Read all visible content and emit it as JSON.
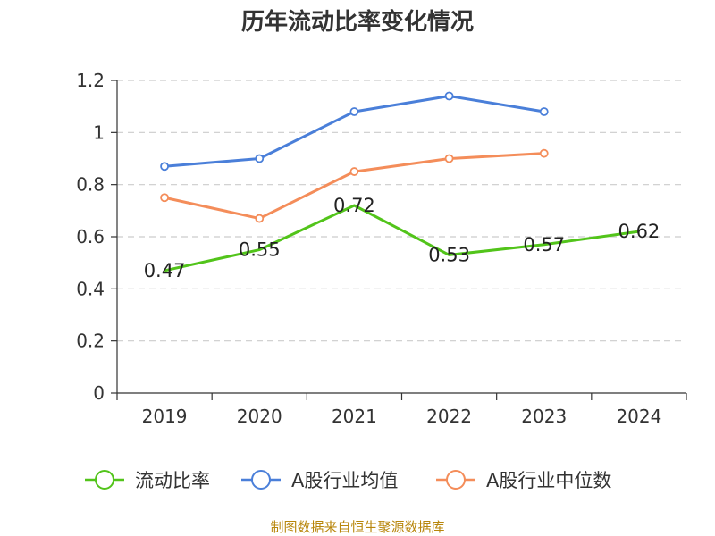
{
  "source": "制图数据来自恒生聚源数据库",
  "chart_data": {
    "type": "line",
    "title": "历年流动比率变化情况",
    "categories": [
      "2019",
      "2020",
      "2021",
      "2022",
      "2023",
      "2024"
    ],
    "ylim": [
      0,
      1.2
    ],
    "yticks": [
      "0",
      "0.2",
      "0.4",
      "0.6",
      "0.8",
      "1",
      "1.2"
    ],
    "grid": true,
    "legend": "bottom",
    "series": [
      {
        "name": "流动比率",
        "color": "#52c41a",
        "values": [
          0.47,
          0.55,
          0.72,
          0.53,
          0.57,
          0.62
        ],
        "labels": [
          "0.47",
          "0.55",
          "0.72",
          "0.53",
          "0.57",
          "0.62"
        ]
      },
      {
        "name": "A股行业均值",
        "color": "#4a7fd9",
        "values": [
          0.87,
          0.9,
          1.08,
          1.14,
          1.08,
          null
        ]
      },
      {
        "name": "A股行业中位数",
        "color": "#f48d5a",
        "values": [
          0.75,
          0.67,
          0.85,
          0.9,
          0.92,
          null
        ]
      }
    ]
  }
}
